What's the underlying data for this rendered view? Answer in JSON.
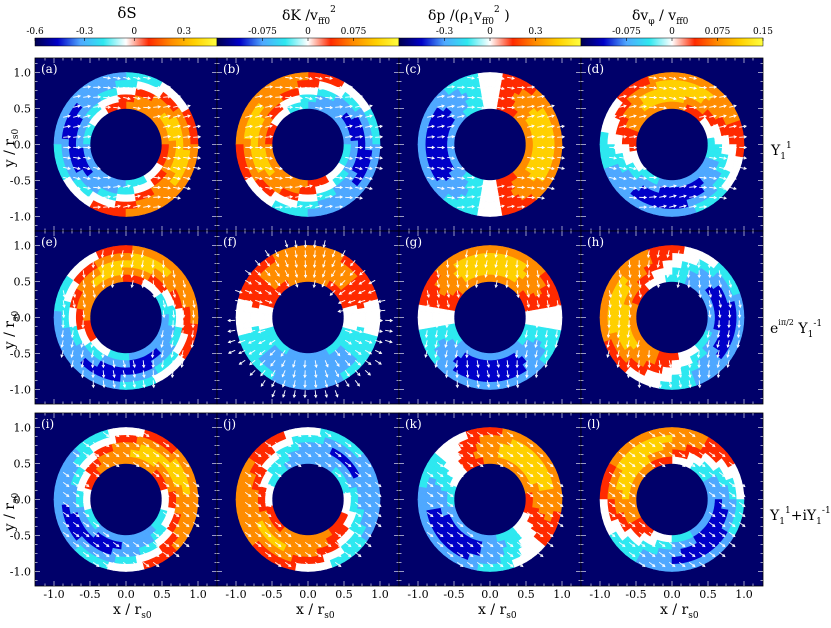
{
  "chart_data": {
    "type": "heatmap",
    "layout": "3 rows x 4 columns of annular color maps with velocity arrows",
    "columns": [
      {
        "title": "δS",
        "colorbar": {
          "range": [
            -0.6,
            0.5
          ],
          "ticks": [
            "-0.6",
            "-0.3",
            "0",
            "0.3"
          ]
        }
      },
      {
        "title": "δK / v_ff0^2",
        "colorbar": {
          "range": [
            -0.15,
            0.15
          ],
          "ticks": [
            "-0.075",
            "0",
            "0.075"
          ]
        }
      },
      {
        "title": "δp / (ρ1 v_ff0^2)",
        "colorbar": {
          "range": [
            -0.6,
            0.6
          ],
          "ticks": [
            "-0.3",
            "0",
            "0.3"
          ]
        }
      },
      {
        "title": "δv_φ / v_ff0",
        "colorbar": {
          "range": [
            -0.15,
            0.15
          ],
          "ticks": [
            "-0.075",
            "0",
            "0.075",
            "0.15"
          ]
        }
      }
    ],
    "rows": [
      {
        "label": "Y_1^1",
        "panels": [
          "(a)",
          "(b)",
          "(c)",
          "(d)"
        ]
      },
      {
        "label": "e^{iπ/2} Y_1^{-1}",
        "panels": [
          "(e)",
          "(f)",
          "(g)",
          "(h)"
        ]
      },
      {
        "label": "Y_1^1 + i Y_1^{-1}",
        "panels": [
          "(i)",
          "(j)",
          "(k)",
          "(l)"
        ]
      }
    ],
    "xlabel": "x / r_s0",
    "ylabel": "y / r_s0",
    "xlim": [
      -1.3,
      1.3
    ],
    "ylim": [
      -1.3,
      1.3
    ],
    "xticks": [
      "-1.0",
      "-0.5",
      "0.0",
      "0.5",
      "1.0"
    ],
    "yticks": [
      "1.0",
      "0.5",
      "0.0",
      "-0.5",
      "-1.0"
    ],
    "colormap": [
      "#00004f",
      "#0000c8",
      "#4fa8ff",
      "#2ee8f0",
      "#ffffff",
      "#ff2a00",
      "#ff8c00",
      "#ffd000",
      "#ffff40"
    ]
  }
}
